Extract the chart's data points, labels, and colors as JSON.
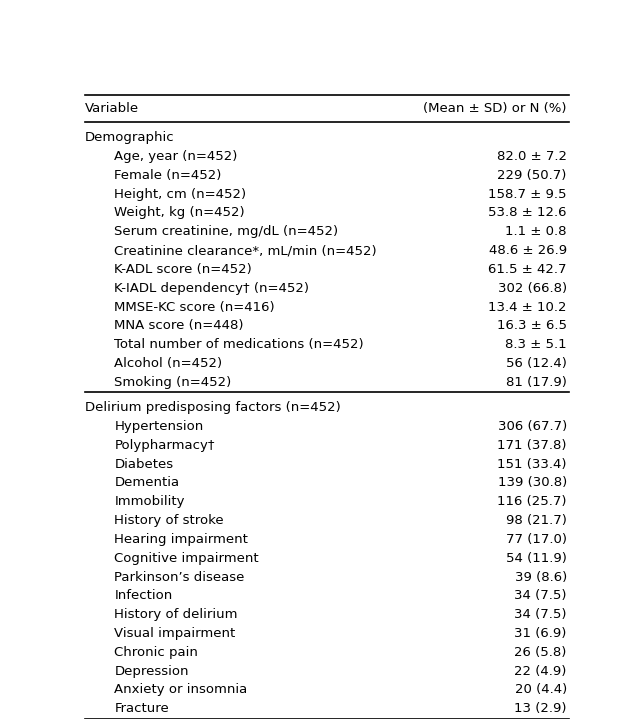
{
  "col_header": [
    "Variable",
    "(Mean ± SD) or N (%)"
  ],
  "sections": [
    {
      "section_label": "Demographic",
      "rows": [
        {
          "label": "Age, year (n=452)",
          "value": "82.0 ± 7.2"
        },
        {
          "label": "Female (n=452)",
          "value": "229 (50.7)"
        },
        {
          "label": "Height, cm (n=452)",
          "value": "158.7 ± 9.5"
        },
        {
          "label": "Weight, kg (n=452)",
          "value": "53.8 ± 12.6"
        },
        {
          "label": "Serum creatinine, mg/dL (n=452)",
          "value": "1.1 ± 0.8"
        },
        {
          "label": "Creatinine clearance*, mL/min (n=452)",
          "value": "48.6 ± 26.9"
        },
        {
          "label": "K-ADL score (n=452)",
          "value": "61.5 ± 42.7"
        },
        {
          "label": "K-IADL dependency† (n=452)",
          "value": "302 (66.8)"
        },
        {
          "label": "MMSE-KC score (n=416)",
          "value": "13.4 ± 10.2"
        },
        {
          "label": "MNA score (n=448)",
          "value": "16.3 ± 6.5"
        },
        {
          "label": "Total number of medications (n=452)",
          "value": "8.3 ± 5.1"
        },
        {
          "label": "Alcohol (n=452)",
          "value": "56 (12.4)"
        },
        {
          "label": "Smoking (n=452)",
          "value": "81 (17.9)"
        }
      ]
    },
    {
      "section_label": "Delirium predisposing factors (n=452)",
      "rows": [
        {
          "label": "Hypertension",
          "value": "306 (67.7)"
        },
        {
          "label": "Polypharmacy†",
          "value": "171 (37.8)"
        },
        {
          "label": "Diabetes",
          "value": "151 (33.4)"
        },
        {
          "label": "Dementia",
          "value": "139 (30.8)"
        },
        {
          "label": "Immobility",
          "value": "116 (25.7)"
        },
        {
          "label": "History of stroke",
          "value": "98 (21.7)"
        },
        {
          "label": "Hearing impairment",
          "value": "77 (17.0)"
        },
        {
          "label": "Cognitive impairment",
          "value": "54 (11.9)"
        },
        {
          "label": "Parkinson’s disease",
          "value": "39 (8.6)"
        },
        {
          "label": "Infection",
          "value": "34 (7.5)"
        },
        {
          "label": "History of delirium",
          "value": "34 (7.5)"
        },
        {
          "label": "Visual impairment",
          "value": "31 (6.9)"
        },
        {
          "label": "Chronic pain",
          "value": "26 (5.8)"
        },
        {
          "label": "Depression",
          "value": "22 (4.9)"
        },
        {
          "label": "Anxiety or insomnia",
          "value": "20 (4.4)"
        },
        {
          "label": "Fracture",
          "value": "13 (2.9)"
        }
      ]
    }
  ],
  "bg_color": "#ffffff",
  "text_color": "#000000",
  "header_fontsize": 9.5,
  "section_fontsize": 9.5,
  "row_fontsize": 9.5
}
